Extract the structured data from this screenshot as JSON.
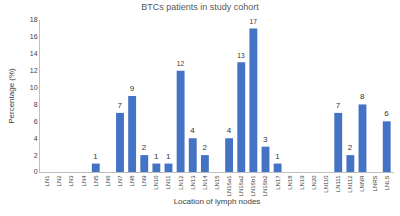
{
  "chart_data": {
    "type": "bar",
    "title": "BTCs patients in study cohort",
    "x_label": "Location of lymph nodes",
    "y_label": "Percentage (%)",
    "categories": [
      "LN1",
      "LN2",
      "LN3",
      "LN4",
      "LN5",
      "LN6",
      "LN7",
      "LN8",
      "LN9",
      "LN10",
      "LN11",
      "LN12",
      "LN13",
      "LN14",
      "LN15",
      "LN16a1",
      "LN16a2",
      "LN16b1",
      "LN16b2",
      "LN17",
      "LN18",
      "LN19",
      "LN20",
      "LN110",
      "LN111",
      "LN112",
      "LNNR",
      "LNRS",
      "LNLS"
    ],
    "values": [
      0,
      0,
      0,
      0,
      1,
      0,
      7,
      9,
      2,
      1,
      1,
      12,
      4,
      2,
      0,
      4,
      13,
      17,
      3,
      1,
      0,
      0,
      0,
      0,
      7,
      2,
      8,
      0,
      6
    ],
    "value_labels": [
      "",
      "",
      "",
      "",
      "1",
      "",
      "7",
      "9",
      "2",
      "1",
      "1",
      "12",
      "4",
      "2",
      "",
      "4",
      "13",
      "17",
      "3",
      "1",
      "",
      "",
      "",
      "",
      "7",
      "2",
      "8",
      "",
      "6"
    ],
    "color": "#4472c4",
    "ylim": [
      0,
      18
    ],
    "yticks": [
      0,
      2,
      4,
      6,
      8,
      10,
      12,
      14,
      16,
      18
    ],
    "grid": false,
    "data_labels": true
  }
}
